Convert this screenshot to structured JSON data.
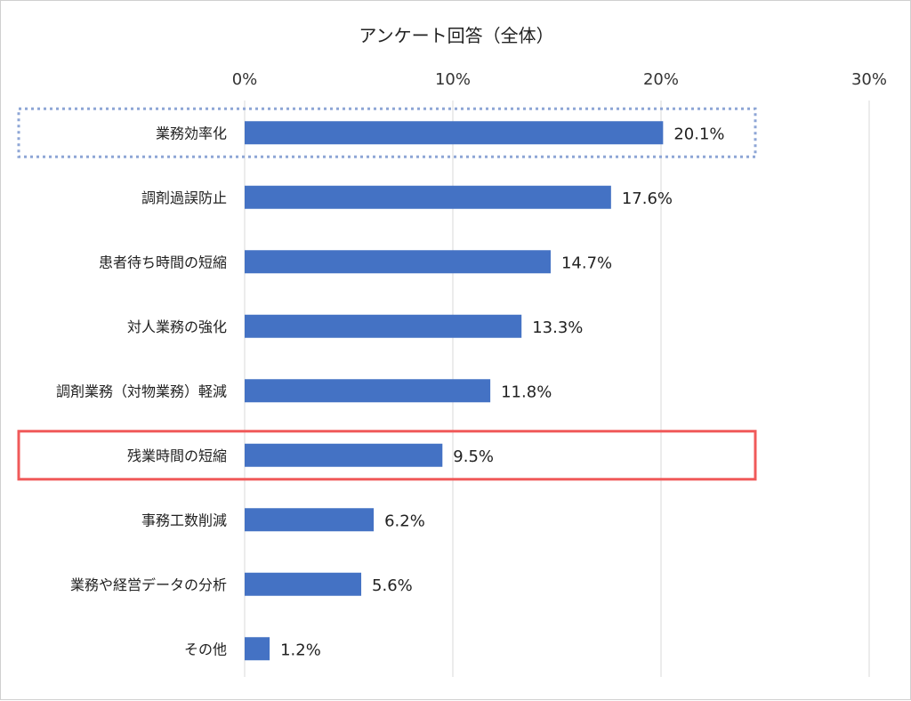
{
  "chart_data": {
    "type": "bar",
    "orientation": "horizontal",
    "title": "アンケート回答（全体）",
    "xlabel": "",
    "ylabel": "",
    "xlim": [
      0,
      30
    ],
    "x_ticks": [
      "0%",
      "10%",
      "20%",
      "30%"
    ],
    "grid": true,
    "categories": [
      "業務効率化",
      "調剤過誤防止",
      "患者待ち時間の短縮",
      "対人業務の強化",
      "調剤業務（対物業務）軽減",
      "残業時間の短縮",
      "事務工数削減",
      "業務や経営データの分析",
      "その他"
    ],
    "values": [
      20.1,
      17.6,
      14.7,
      13.3,
      11.8,
      9.5,
      6.2,
      5.6,
      1.2
    ],
    "data_labels": [
      "20.1%",
      "17.6%",
      "14.7%",
      "13.3%",
      "11.8%",
      "9.5%",
      "6.2%",
      "5.6%",
      "1.2%"
    ],
    "bar_color": "#4472c4",
    "highlights": [
      {
        "category": "業務効率化",
        "style": "dotted",
        "color": "#8ea6d6"
      },
      {
        "category": "残業時間の短縮",
        "style": "solid",
        "color": "#f05a5a"
      }
    ]
  }
}
